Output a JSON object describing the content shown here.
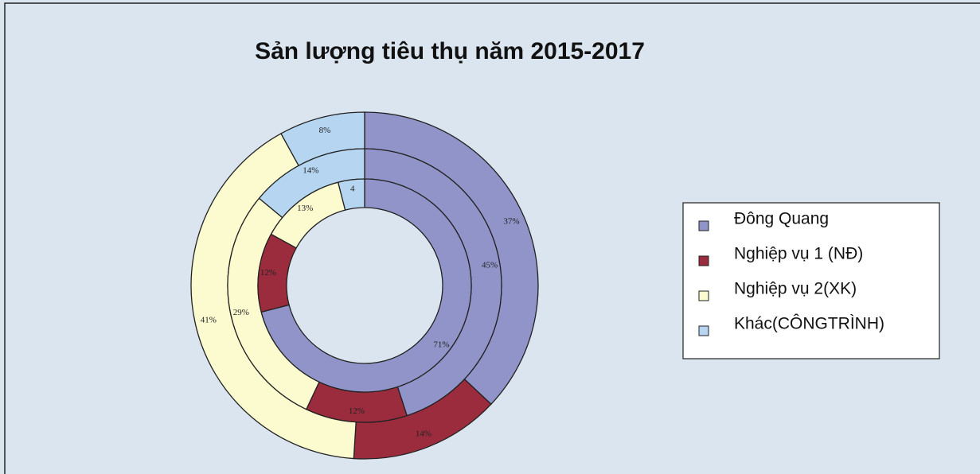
{
  "chart_data": {
    "type": "donut",
    "title": "Sản lượng tiêu thụ năm 2015-2017",
    "categories": [
      "Đông  Quang",
      "Nghiệp vụ 1 (NĐ)",
      "Nghiệp vụ 2(XK)",
      "Khác(CÔNGTRÌNH)"
    ],
    "colors": [
      "#9094c8",
      "#9a2c3e",
      "#fcfbd0",
      "#b6d5f1"
    ],
    "rings": [
      {
        "values": [
          37,
          14,
          41,
          8
        ],
        "value_labels": [
          "37%",
          "14%",
          "41%",
          "8%"
        ]
      },
      {
        "values": [
          45,
          12,
          29,
          14
        ],
        "value_labels": [
          "45%",
          "12%",
          "29%",
          "14%"
        ]
      },
      {
        "values": [
          71,
          12,
          13,
          4
        ],
        "value_labels": [
          "71%",
          "12%",
          "13%",
          "4"
        ]
      }
    ],
    "legend": "right"
  }
}
